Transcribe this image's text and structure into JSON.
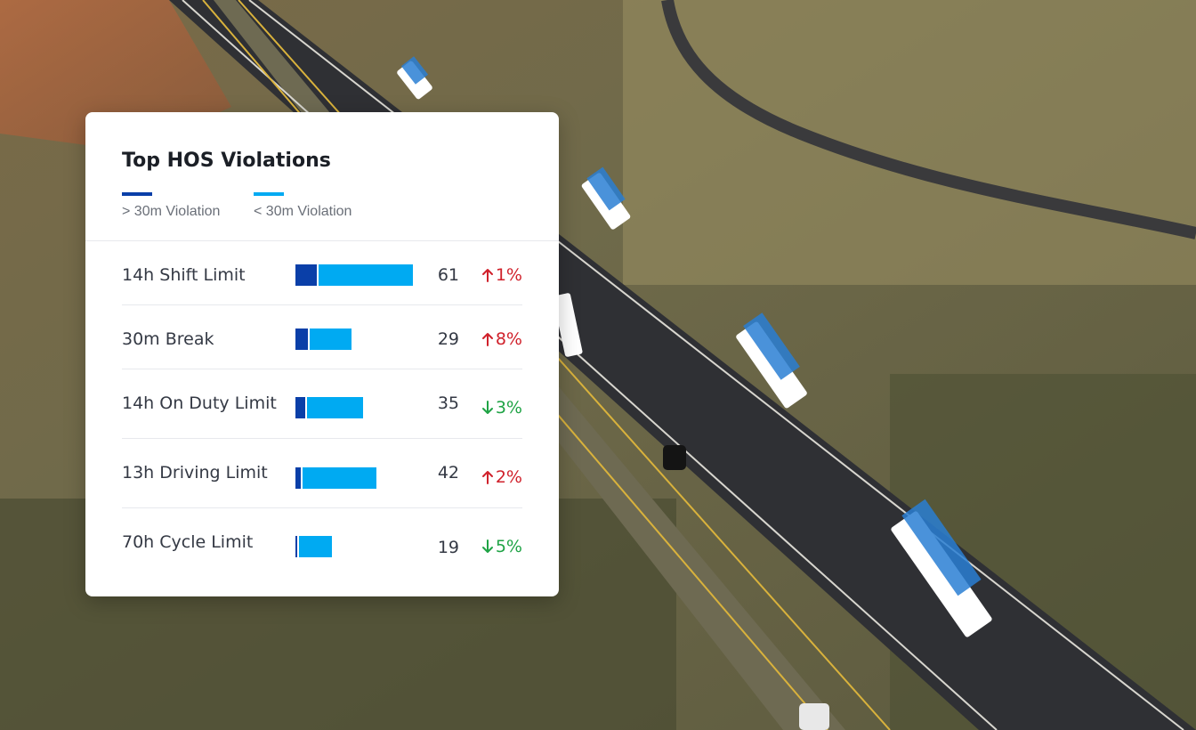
{
  "colors": {
    "over_30m": "#0a3fa8",
    "under_30m": "#00aaf2",
    "increase": "#d0212b",
    "decrease": "#1fa345"
  },
  "card": {
    "title": "Top HOS Violations",
    "legend": [
      {
        "label": "> 30m Violation",
        "color_key": "over_30m"
      },
      {
        "label": "< 30m Violation",
        "color_key": "under_30m"
      }
    ]
  },
  "rows": [
    {
      "label": "14h Shift Limit",
      "value": "61",
      "change": "1%",
      "direction": "up",
      "over_share": 0.18
    },
    {
      "label": "30m Break",
      "value": "29",
      "change": "8%",
      "direction": "up",
      "over_share": 0.23
    },
    {
      "label": "14h On Duty Limit",
      "value": "35",
      "change": "3%",
      "direction": "down",
      "over_share": 0.14
    },
    {
      "label": "13h Driving Limit",
      "value": "42",
      "change": "2%",
      "direction": "up",
      "over_share": 0.07
    },
    {
      "label": "70h Cycle Limit",
      "value": "19",
      "change": "5%",
      "direction": "down",
      "over_share": 0.06
    }
  ]
}
